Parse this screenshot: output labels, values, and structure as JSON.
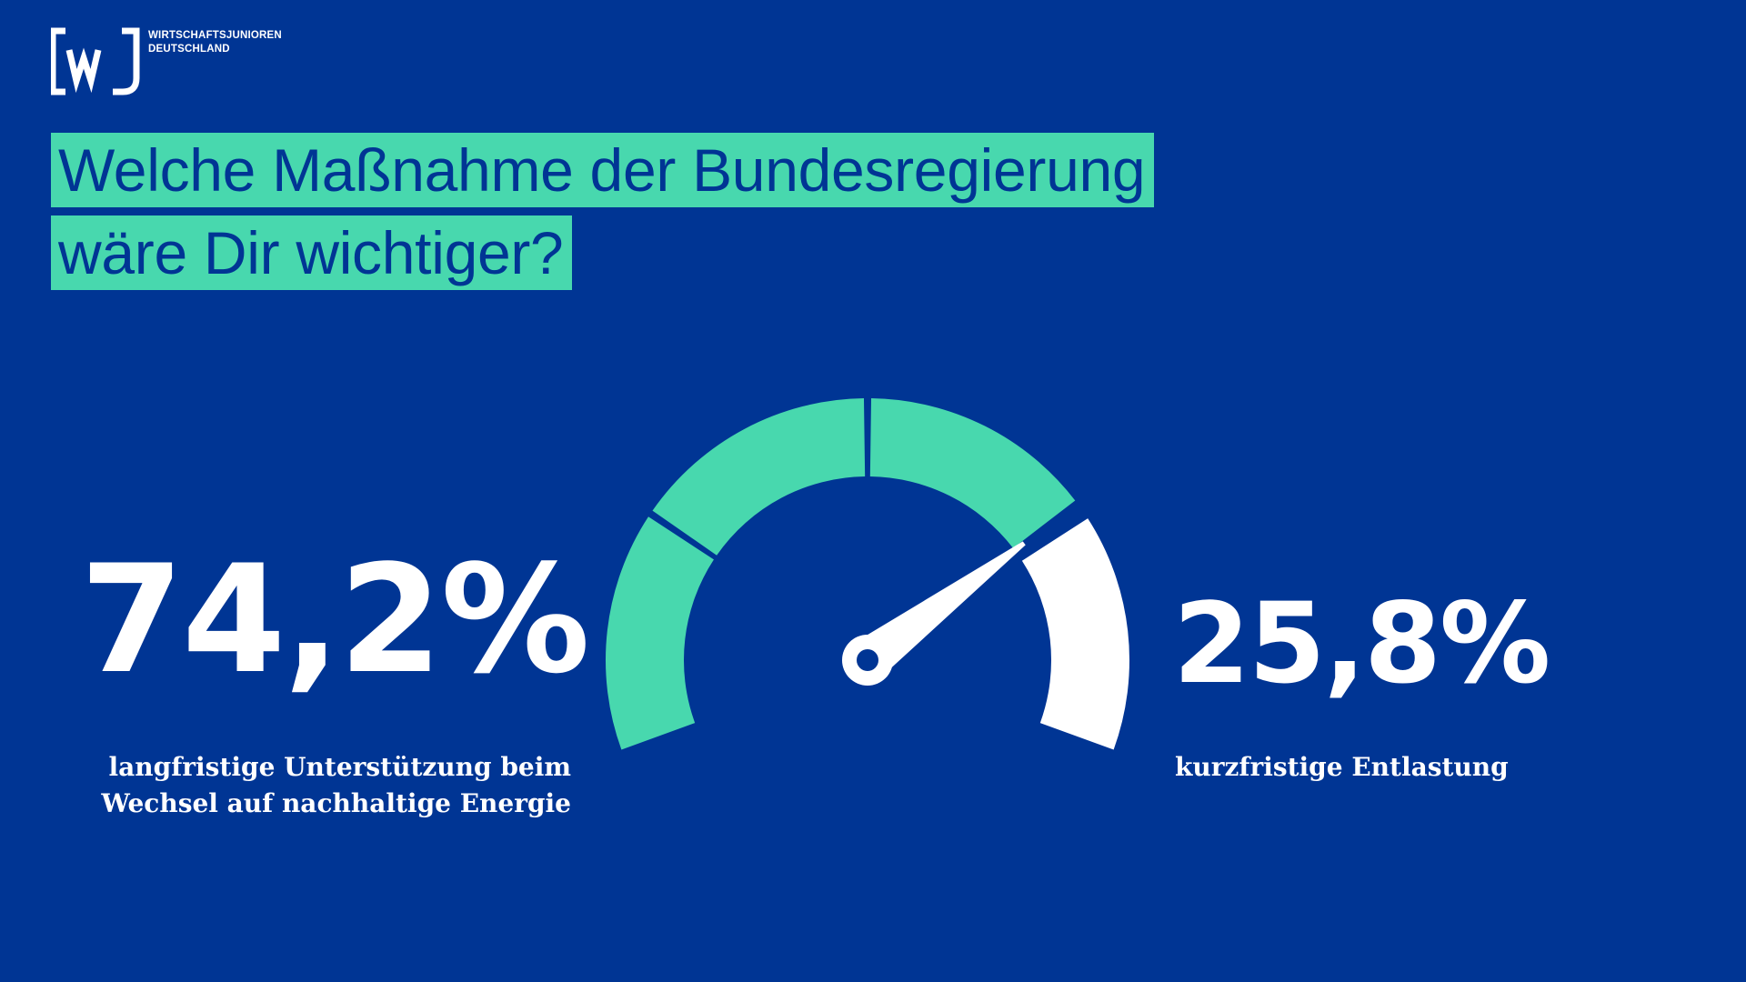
{
  "logo": {
    "mark_text": "[wJ]",
    "name_line_1": "WIRTSCHAFTSJUNIOREN",
    "name_line_2": "DEUTSCHLAND"
  },
  "title": {
    "line_1": "Welche Maßnahme der Bundesregierung",
    "line_2": "wäre Dir wichtiger?"
  },
  "colors": {
    "background": "#003594",
    "accent": "#48d8ae",
    "secondary": "#ffffff"
  },
  "chart_data": {
    "type": "gauge",
    "title": "Welche Maßnahme der Bundesregierung wäre Dir wichtiger?",
    "segments": [
      {
        "label": "langfristige Unterstützung beim Wechsel auf nachhaltige Energie",
        "value": 74.2,
        "display": "74,2%",
        "color": "#48d8ae"
      },
      {
        "label": "kurzfristige Entlastung",
        "value": 25.8,
        "display": "25,8%",
        "color": "#ffffff"
      }
    ],
    "needle_value": 74.2,
    "range": [
      0,
      100
    ]
  },
  "labels": {
    "left_value": "74,2%",
    "left_caption_line_1": "langfristige Unterstützung beim",
    "left_caption_line_2": "Wechsel auf nachhaltige Energie",
    "right_value": "25,8%",
    "right_caption": "kurzfristige Entlastung"
  }
}
